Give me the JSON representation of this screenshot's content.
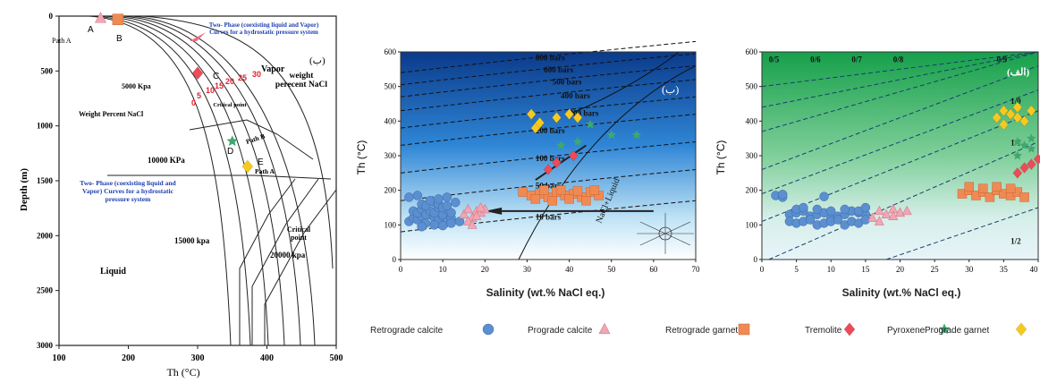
{
  "colors": {
    "retrograde_calcite": "#5b8fd0",
    "prograde_calcite": "#f2a6b4",
    "retrograde_garnet": "#f08a55",
    "tremolite": "#ec4b57",
    "pyroxene": "#3ea86e",
    "prograde_garnet": "#f7c920"
  },
  "legend": [
    {
      "label": "Retrograde calcite",
      "shape": "circle",
      "color": "#5b8fd0"
    },
    {
      "label": "Prograde calcite",
      "shape": "triangle",
      "color": "#f2a6b4"
    },
    {
      "label": "Retrograde garnet",
      "shape": "square",
      "color": "#f08a55"
    },
    {
      "label": "Tremolite",
      "shape": "diamond",
      "color": "#ec4b57"
    },
    {
      "label": "Pyroxene",
      "shape": "star",
      "color": "#3ea86e"
    },
    {
      "label": "Prograde garnet",
      "shape": "diamond",
      "color": "#f7c920"
    }
  ],
  "chart_data": [
    {
      "type": "line",
      "xlabel": "Th (°C)",
      "ylabel": "Depth (m)",
      "xlim": [
        100,
        500
      ],
      "ylim": [
        3000,
        0
      ],
      "xticks": [
        100,
        200,
        300,
        400,
        500
      ],
      "yticks": [
        0,
        500,
        1000,
        1500,
        2000,
        2500,
        3000
      ],
      "panel_label": "(ب)",
      "annotations": {
        "path_a_left": "Path A",
        "point_a": "A",
        "point_b": "B",
        "point_c": "C",
        "point_d": "D",
        "point_e": "E",
        "two_phase_top": "Two- Phase (coexisting liquid and Vapor) Curves for a hydrostatic pressure system",
        "two_phase_mid": "Two- Phase (coexisting liquid and Vapor) Curves for a hydrostatic pressure system",
        "p5000": "5000 Kpa",
        "p10000": "10000 KPa",
        "p15000": "15000 kpa",
        "p20000": "20000 kpa",
        "vapor": "Vapor",
        "weight_percent_right": "weight perecent NaCl",
        "weight_percent_left": "Weight Percent NaCl",
        "critical_point": "Critical point",
        "critical_point_lower": "Critical point",
        "path_b": "Path B",
        "path_a_right": "Path A",
        "liquid": "Liquid",
        "salinity_nums": [
          "0",
          "5",
          "10",
          "15",
          "20",
          "25",
          "30"
        ]
      },
      "points": [
        {
          "name": "A",
          "x": 160,
          "y": 20,
          "marker": "triangle",
          "color": "#f2a6b4"
        },
        {
          "name": "B",
          "x": 185,
          "y": 30,
          "marker": "square",
          "color": "#f08a55"
        },
        {
          "name": "C",
          "x": 300,
          "y": 520,
          "marker": "diamond",
          "color": "#ec4b57"
        },
        {
          "name": "D",
          "x": 350,
          "y": 1140,
          "marker": "star",
          "color": "#3ea86e"
        },
        {
          "name": "E",
          "x": 372,
          "y": 1370,
          "marker": "diamond",
          "color": "#f7c920"
        }
      ]
    },
    {
      "type": "scatter",
      "panel_label": "(ب)",
      "xlabel": "Salinity (wt.% NaCl eq.)",
      "ylabel": "Th (°C)",
      "xlim": [
        0,
        70
      ],
      "ylim": [
        0,
        600
      ],
      "xticks": [
        0,
        10,
        20,
        30,
        40,
        50,
        60,
        70
      ],
      "yticks": [
        0,
        100,
        200,
        300,
        400,
        500,
        600
      ],
      "isobars": [
        "800 bars",
        "600 bars",
        "500 bars",
        "400 bars",
        "300 bars",
        "200 bars",
        "100 bars",
        "50 bars",
        "10 bars"
      ],
      "curve_label": "NaCl+Liquid",
      "series": [
        {
          "name": "Retrograde calcite",
          "marker": "circle",
          "color": "#5b8fd0",
          "x": [
            2,
            3,
            4,
            5,
            6,
            7,
            8,
            9,
            10,
            11,
            12,
            3,
            4,
            5,
            6,
            7,
            8,
            9,
            10,
            11,
            12,
            5,
            6,
            8,
            9,
            10,
            11,
            2,
            4,
            7,
            9,
            11,
            13,
            5,
            8,
            10,
            12,
            14
          ],
          "y": [
            110,
            120,
            115,
            125,
            105,
            130,
            120,
            115,
            125,
            110,
            120,
            140,
            135,
            145,
            130,
            140,
            135,
            150,
            130,
            145,
            135,
            160,
            155,
            165,
            160,
            150,
            155,
            180,
            185,
            170,
            175,
            180,
            165,
            95,
            100,
            98,
            105,
            110
          ]
        },
        {
          "name": "Prograde calcite",
          "marker": "triangle",
          "color": "#f2a6b4",
          "x": [
            15,
            16,
            17,
            18,
            19,
            20,
            16,
            18,
            17,
            19
          ],
          "y": [
            130,
            145,
            120,
            140,
            135,
            145,
            110,
            125,
            100,
            150
          ]
        },
        {
          "name": "Retrograde garnet",
          "marker": "square",
          "color": "#f08a55",
          "x": [
            29,
            31,
            33,
            35,
            37,
            39,
            41,
            43,
            45,
            47,
            32,
            36,
            40,
            44,
            34,
            38,
            42,
            46
          ],
          "y": [
            195,
            185,
            190,
            180,
            195,
            185,
            190,
            180,
            195,
            185,
            175,
            170,
            175,
            170,
            200,
            200,
            198,
            200
          ]
        },
        {
          "name": "Tremolite",
          "marker": "diamond",
          "color": "#ec4b57",
          "x": [
            35,
            37,
            41
          ],
          "y": [
            260,
            280,
            300
          ]
        },
        {
          "name": "Pyroxene",
          "marker": "star",
          "color": "#3ea86e",
          "x": [
            38,
            42,
            45,
            50,
            56
          ],
          "y": [
            330,
            340,
            390,
            360,
            360
          ]
        },
        {
          "name": "Prograde garnet",
          "marker": "diamond",
          "color": "#f7c920",
          "x": [
            31,
            32,
            33,
            37,
            40,
            42
          ],
          "y": [
            420,
            380,
            395,
            410,
            420,
            410
          ]
        }
      ]
    },
    {
      "type": "scatter",
      "panel_label": "(الف)",
      "xlabel": "Salinity (wt.% NaCl eq.)",
      "ylabel": "Th (°C)",
      "xlim": [
        0,
        40
      ],
      "ylim": [
        0,
        600
      ],
      "xticks": [
        0,
        5,
        10,
        15,
        20,
        25,
        30,
        35,
        40
      ],
      "yticks": [
        0,
        100,
        200,
        300,
        400,
        500,
        600
      ],
      "isolines": [
        "0/5",
        "0/6",
        "0/7",
        "0/8",
        "0/9",
        "1/0",
        "1/1",
        "1/2"
      ],
      "series": [
        {
          "name": "Retrograde calcite",
          "marker": "circle",
          "color": "#5b8fd0",
          "x": [
            2,
            3,
            4,
            5,
            6,
            7,
            8,
            9,
            10,
            11,
            12,
            13,
            14,
            15,
            4,
            5,
            6,
            7,
            8,
            9,
            10,
            11,
            12,
            13,
            14,
            15,
            5,
            6,
            8,
            10,
            12,
            14,
            15,
            3,
            9
          ],
          "y": [
            185,
            180,
            130,
            135,
            140,
            125,
            130,
            135,
            120,
            125,
            130,
            140,
            135,
            130,
            110,
            105,
            110,
            115,
            100,
            105,
            110,
            115,
            100,
            110,
            105,
            115,
            145,
            150,
            145,
            140,
            145,
            140,
            150,
            188,
            182
          ]
        },
        {
          "name": "Prograde calcite",
          "marker": "triangle",
          "color": "#f2a6b4",
          "x": [
            16,
            17,
            18,
            19,
            20,
            21,
            17,
            19
          ],
          "y": [
            120,
            140,
            130,
            145,
            135,
            140,
            110,
            125
          ]
        },
        {
          "name": "Retrograde garnet",
          "marker": "square",
          "color": "#f08a55",
          "x": [
            29,
            30,
            31,
            32,
            33,
            34,
            35,
            36,
            37,
            38,
            30,
            32,
            34,
            36
          ],
          "y": [
            190,
            200,
            185,
            195,
            180,
            200,
            190,
            185,
            195,
            180,
            210,
            205,
            210,
            205
          ]
        },
        {
          "name": "Tremolite",
          "marker": "diamond",
          "color": "#ec4b57",
          "x": [
            37,
            38,
            39,
            40
          ],
          "y": [
            250,
            265,
            275,
            290
          ]
        },
        {
          "name": "Pyroxene",
          "marker": "star",
          "color": "#3ea86e",
          "x": [
            37,
            38,
            39,
            37,
            39
          ],
          "y": [
            340,
            330,
            350,
            300,
            320
          ]
        },
        {
          "name": "Prograde garnet",
          "marker": "diamond",
          "color": "#f7c920",
          "x": [
            34,
            35,
            36,
            37,
            38,
            39,
            35,
            37
          ],
          "y": [
            410,
            430,
            420,
            440,
            400,
            430,
            390,
            410
          ]
        }
      ]
    }
  ]
}
